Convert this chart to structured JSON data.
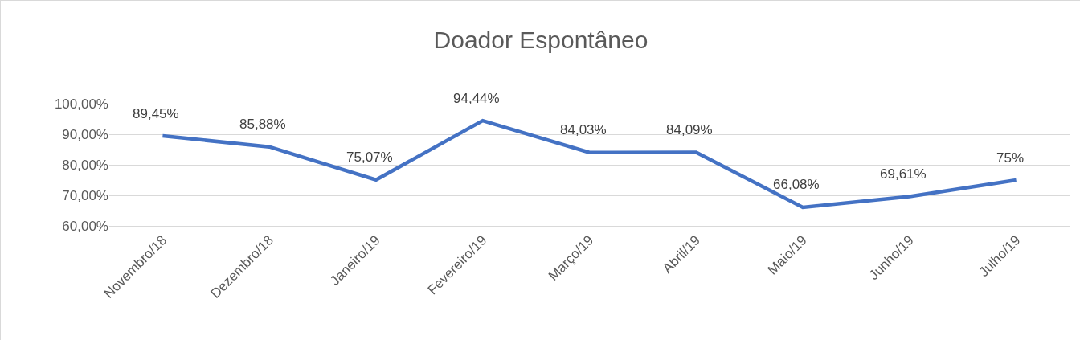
{
  "chart_data": {
    "type": "line",
    "title": "Doador Espontâneo",
    "categories": [
      "Novembro/18",
      "Dezembro/18",
      "Janeiro/19",
      "Fevereiro/19",
      "Março/19",
      "Abril/19",
      "Maio/19",
      "Junho/19",
      "Julho/19"
    ],
    "series": [
      {
        "color": "#4472c4",
        "values": [
          89.45,
          85.88,
          75.07,
          94.44,
          84.03,
          84.09,
          66.08,
          69.61,
          75
        ],
        "value_labels": [
          "89,45%",
          "85,88%",
          "75,07%",
          "94,44%",
          "84,03%",
          "84,09%",
          "66,08%",
          "69,61%",
          "75%"
        ]
      }
    ],
    "ylim": [
      60,
      100
    ],
    "yticks": [
      {
        "value": 60,
        "label": "60,00%"
      },
      {
        "value": 70,
        "label": "70,00%"
      },
      {
        "value": 80,
        "label": "80,00%"
      },
      {
        "value": 90,
        "label": "90,00%"
      },
      {
        "value": 100,
        "label": "100,00%"
      }
    ],
    "grid": "y",
    "marker": "none",
    "line_style": "solid"
  }
}
